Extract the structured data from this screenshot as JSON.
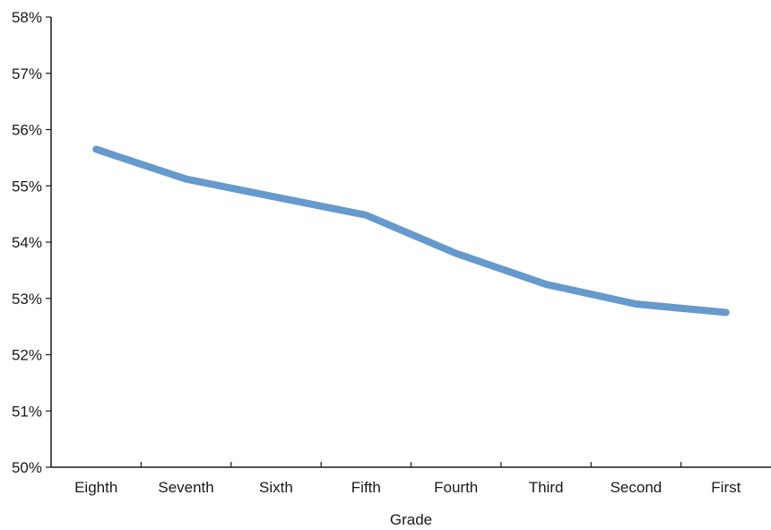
{
  "chart_data": {
    "type": "line",
    "title": "",
    "xlabel": "Grade",
    "ylabel": "",
    "categories": [
      "Eighth",
      "Seventh",
      "Sixth",
      "Fifth",
      "Fourth",
      "Third",
      "Second",
      "First"
    ],
    "series": [
      {
        "values": [
          55.65,
          55.12,
          54.8,
          54.48,
          53.8,
          53.25,
          52.9,
          52.75
        ]
      }
    ],
    "ylim": [
      50,
      58
    ],
    "yticks": [
      "50%",
      "51%",
      "52%",
      "53%",
      "54%",
      "55%",
      "56%",
      "57%",
      "58%"
    ],
    "line_color": "#6699cc",
    "grid": false,
    "legend": "none"
  }
}
